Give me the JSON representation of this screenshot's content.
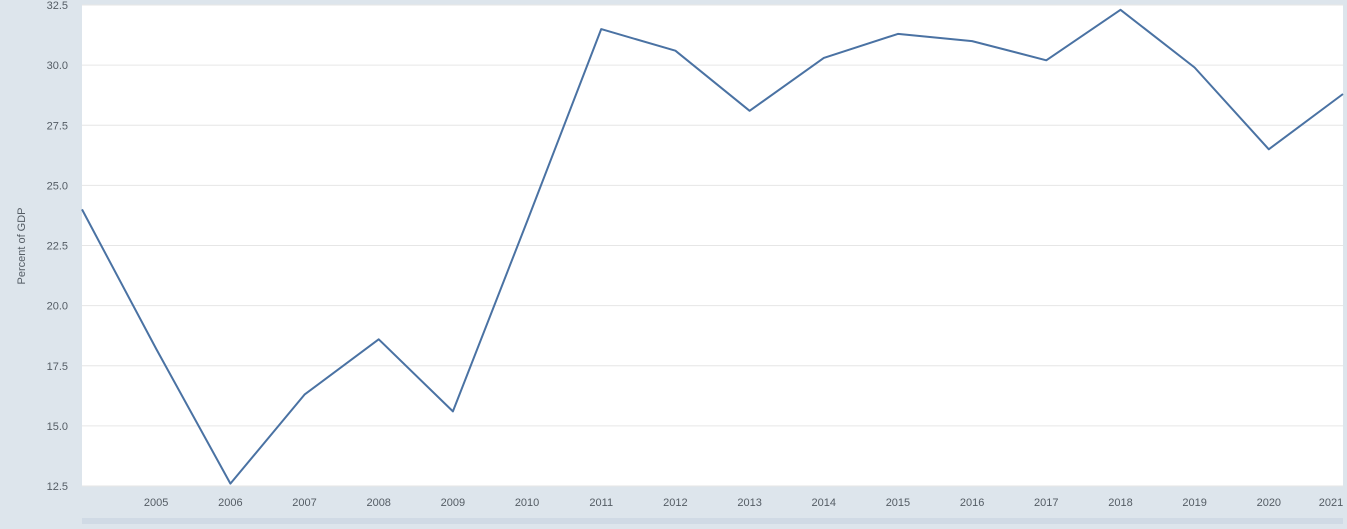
{
  "chart_data": {
    "type": "line",
    "title": "",
    "xlabel": "",
    "ylabel": "Percent of GDP",
    "x": [
      2004,
      2005,
      2006,
      2007,
      2008,
      2009,
      2010,
      2011,
      2012,
      2013,
      2014,
      2015,
      2016,
      2017,
      2018,
      2019,
      2020,
      2021
    ],
    "xtick_labels": [
      "2005",
      "2006",
      "2007",
      "2008",
      "2009",
      "2010",
      "2011",
      "2012",
      "2013",
      "2014",
      "2015",
      "2016",
      "2017",
      "2018",
      "2019",
      "2020",
      "2021"
    ],
    "yticks": [
      12.5,
      15.0,
      17.5,
      20.0,
      22.5,
      25.0,
      27.5,
      30.0,
      32.5
    ],
    "ytick_labels": [
      "12.5",
      "15.0",
      "17.5",
      "20.0",
      "22.5",
      "25.0",
      "27.5",
      "30.0",
      "32.5"
    ],
    "xlim": [
      2004,
      2021
    ],
    "ylim": [
      12.5,
      32.5
    ],
    "grid": true,
    "legend": "none",
    "series": [
      {
        "values": [
          24.0,
          18.2,
          12.6,
          16.3,
          18.6,
          15.6,
          23.5,
          31.5,
          30.6,
          28.1,
          30.3,
          31.3,
          31.0,
          30.2,
          32.3,
          29.9,
          26.5,
          28.8
        ]
      }
    ],
    "colors": {
      "line": "#4a72a3",
      "grid": "#e6e6e6",
      "axis_text": "#545c64",
      "plot_bg": "#ffffff",
      "page_bg": "#dde5ec"
    }
  }
}
